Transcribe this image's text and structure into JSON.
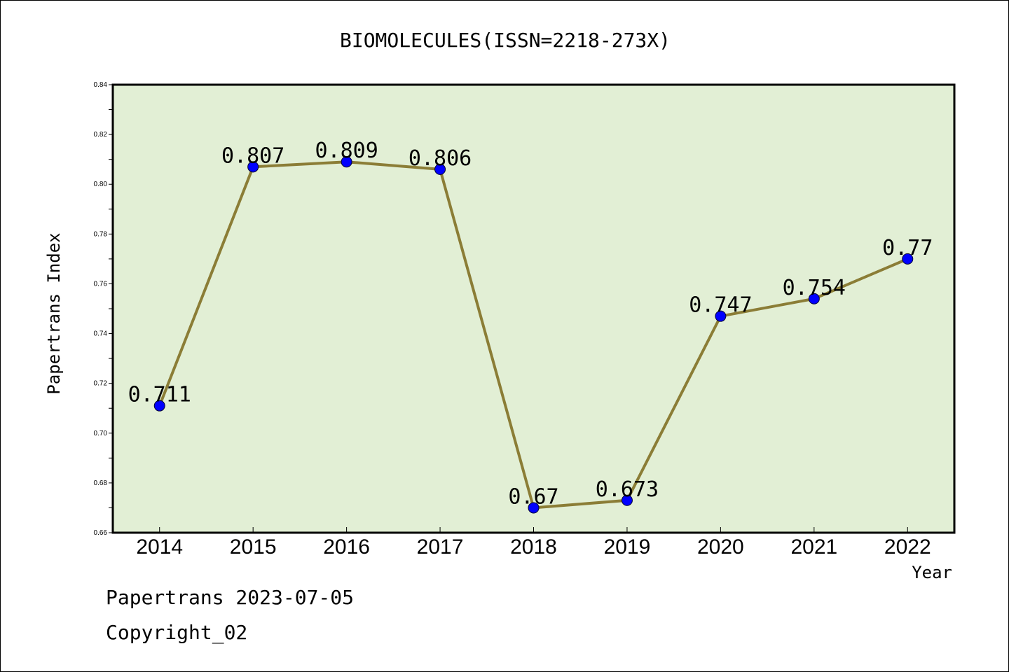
{
  "chart_data": {
    "type": "line",
    "title": "BIOMOLECULES(ISSN=2218-273X)",
    "xlabel": "Year",
    "ylabel": "Papertrans Index",
    "categories": [
      "2014",
      "2015",
      "2016",
      "2017",
      "2018",
      "2019",
      "2020",
      "2021",
      "2022"
    ],
    "series": [
      {
        "values": [
          0.711,
          0.807,
          0.809,
          0.806,
          0.67,
          0.673,
          0.747,
          0.754,
          0.77
        ]
      }
    ],
    "data_labels": [
      "0.711",
      "0.807",
      "0.809",
      "0.806",
      "0.67",
      "0.673",
      "0.747",
      "0.754",
      "0.77"
    ],
    "ylim": [
      0.66,
      0.84
    ],
    "yticks": [
      "0.66",
      "0.68",
      "0.70",
      "0.72",
      "0.74",
      "0.76",
      "0.78",
      "0.80",
      "0.82",
      "0.84"
    ],
    "grid": false,
    "colors": {
      "plot_background": "#e2efd5",
      "line": "#8b7d36",
      "marker": "#0000ff"
    }
  },
  "footer": {
    "date_text": "Papertrans 2023-07-05",
    "copyright_text": "Copyright_02"
  }
}
